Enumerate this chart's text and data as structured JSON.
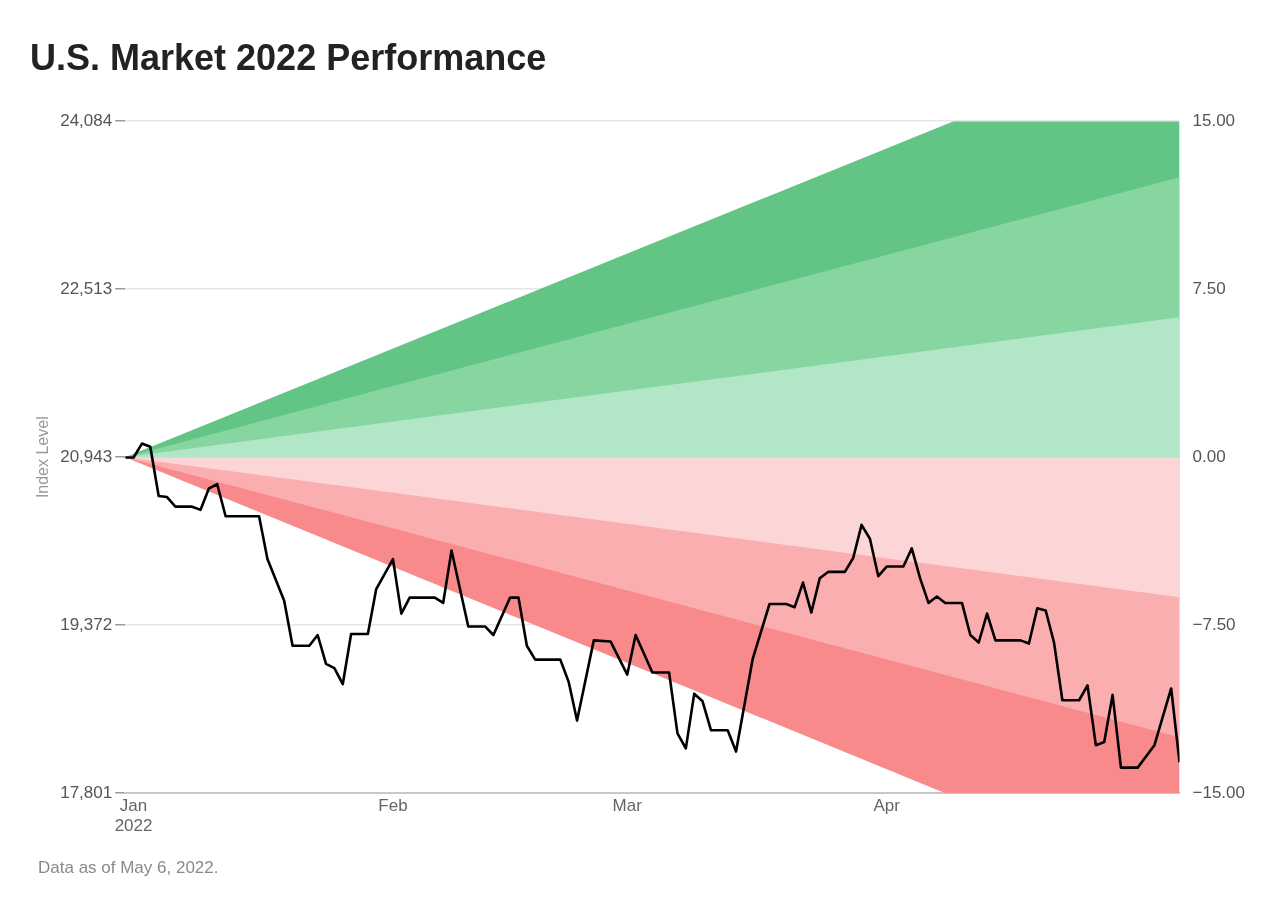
{
  "chart_data": {
    "type": "line",
    "title": "U.S. Market 2022 Performance",
    "ylabel": "Index Level",
    "xlim": [
      "2021-12-31",
      "2022-05-06"
    ],
    "xticks": [
      {
        "value": "2022-01-01",
        "label": "Jan\n2022"
      },
      {
        "value": "2022-02-01",
        "label": "Feb"
      },
      {
        "value": "2022-03-01",
        "label": "Mar"
      },
      {
        "value": "2022-04-01",
        "label": "Apr"
      }
    ],
    "ylim": [
      17801,
      24084
    ],
    "yticks": [
      {
        "value": 17801,
        "label": "17,801"
      },
      {
        "value": 19372,
        "label": "19,372"
      },
      {
        "value": 20943,
        "label": "20,943"
      },
      {
        "value": 22513,
        "label": "22,513"
      },
      {
        "value": 24084,
        "label": "24,084"
      }
    ],
    "y2lim": [
      -15,
      15
    ],
    "y2ticks": [
      {
        "value": -15,
        "label": "−15.00"
      },
      {
        "value": -7.5,
        "label": "−7.50"
      },
      {
        "value": 0,
        "label": "0.00"
      },
      {
        "value": 7.5,
        "label": "7.50"
      },
      {
        "value": 15,
        "label": "15.00"
      }
    ],
    "grid": "y",
    "legend": false,
    "marker": "none",
    "line_style": "solid",
    "series": [
      {
        "type": "area",
        "axis": "y2",
        "color": "#63c585",
        "x": [
          "2021-12-31",
          "2022-04-09",
          "2022-05-06"
        ],
        "values": [
          0,
          15,
          15
        ]
      },
      {
        "type": "area",
        "axis": "y2",
        "color": "#87d6a2",
        "x": [
          "2021-12-31",
          "2022-05-06"
        ],
        "values": [
          0,
          12.5
        ]
      },
      {
        "type": "area",
        "axis": "y2",
        "color": "#b1e6c7",
        "x": [
          "2021-12-31",
          "2022-05-06"
        ],
        "values": [
          0,
          6.25
        ]
      },
      {
        "type": "area",
        "axis": "y2",
        "color": "#f98a8c",
        "x": [
          "2021-12-31",
          "2022-04-08",
          "2022-05-06"
        ],
        "values": [
          0,
          -15,
          -15
        ]
      },
      {
        "type": "area",
        "axis": "y2",
        "color": "#fbaeb0",
        "x": [
          "2021-12-31",
          "2022-05-06"
        ],
        "values": [
          0,
          -12.5
        ]
      },
      {
        "type": "area",
        "axis": "y2",
        "color": "#fcd5d6",
        "x": [
          "2021-12-31",
          "2022-05-06"
        ],
        "values": [
          0,
          -6.25
        ]
      },
      {
        "color": "#000000",
        "x": [
          "2021-12-31",
          "2022-01-01",
          "2022-01-02",
          "2022-01-03",
          "2022-01-04",
          "2022-01-05",
          "2022-01-06",
          "2022-01-08",
          "2022-01-09",
          "2022-01-10",
          "2022-01-11",
          "2022-01-12",
          "2022-01-16",
          "2022-01-17",
          "2022-01-19",
          "2022-01-20",
          "2022-01-22",
          "2022-01-23",
          "2022-01-24",
          "2022-01-25",
          "2022-01-26",
          "2022-01-27",
          "2022-01-29",
          "2022-01-30",
          "2022-02-01",
          "2022-02-02",
          "2022-02-03",
          "2022-02-06",
          "2022-02-07",
          "2022-02-08",
          "2022-02-10",
          "2022-02-12",
          "2022-02-13",
          "2022-02-15",
          "2022-02-16",
          "2022-02-17",
          "2022-02-18",
          "2022-02-21",
          "2022-02-22",
          "2022-02-23",
          "2022-02-25",
          "2022-02-27",
          "2022-03-01",
          "2022-03-02",
          "2022-03-04",
          "2022-03-06",
          "2022-03-07",
          "2022-03-08",
          "2022-03-09",
          "2022-03-10",
          "2022-03-11",
          "2022-03-13",
          "2022-03-14",
          "2022-03-16",
          "2022-03-18",
          "2022-03-20",
          "2022-03-21",
          "2022-03-22",
          "2022-03-23",
          "2022-03-24",
          "2022-03-25",
          "2022-03-27",
          "2022-03-28",
          "2022-03-29",
          "2022-03-30",
          "2022-03-31",
          "2022-04-01",
          "2022-04-03",
          "2022-04-04",
          "2022-04-05",
          "2022-04-06",
          "2022-04-07",
          "2022-04-08",
          "2022-04-10",
          "2022-04-11",
          "2022-04-12",
          "2022-04-13",
          "2022-04-14",
          "2022-04-17",
          "2022-04-18",
          "2022-04-19",
          "2022-04-20",
          "2022-04-21",
          "2022-04-22",
          "2022-04-24",
          "2022-04-25",
          "2022-04-26",
          "2022-04-27",
          "2022-04-28",
          "2022-04-29",
          "2022-05-01",
          "2022-05-03",
          "2022-05-05",
          "2022-05-06"
        ],
        "values": [
          20940,
          20940,
          21070,
          21040,
          20580,
          20570,
          20480,
          20480,
          20450,
          20650,
          20690,
          20390,
          20390,
          19990,
          19600,
          19180,
          19180,
          19280,
          19010,
          18970,
          18820,
          19290,
          19290,
          19710,
          19990,
          19480,
          19630,
          19630,
          19580,
          20070,
          19360,
          19360,
          19280,
          19630,
          19630,
          19180,
          19050,
          19050,
          18840,
          18480,
          19230,
          19220,
          18910,
          19280,
          18930,
          18930,
          18360,
          18220,
          18730,
          18660,
          18390,
          18390,
          18190,
          19060,
          19570,
          19570,
          19540,
          19770,
          19490,
          19810,
          19870,
          19870,
          20000,
          20310,
          20180,
          19830,
          19920,
          19920,
          20090,
          19810,
          19580,
          19640,
          19580,
          19580,
          19280,
          19210,
          19480,
          19230,
          19230,
          19200,
          19530,
          19510,
          19210,
          18670,
          18670,
          18810,
          18250,
          18280,
          18720,
          18040,
          18040,
          18250,
          18780,
          18090
        ]
      }
    ],
    "annotations": [
      "Data as of May 6, 2022."
    ]
  }
}
